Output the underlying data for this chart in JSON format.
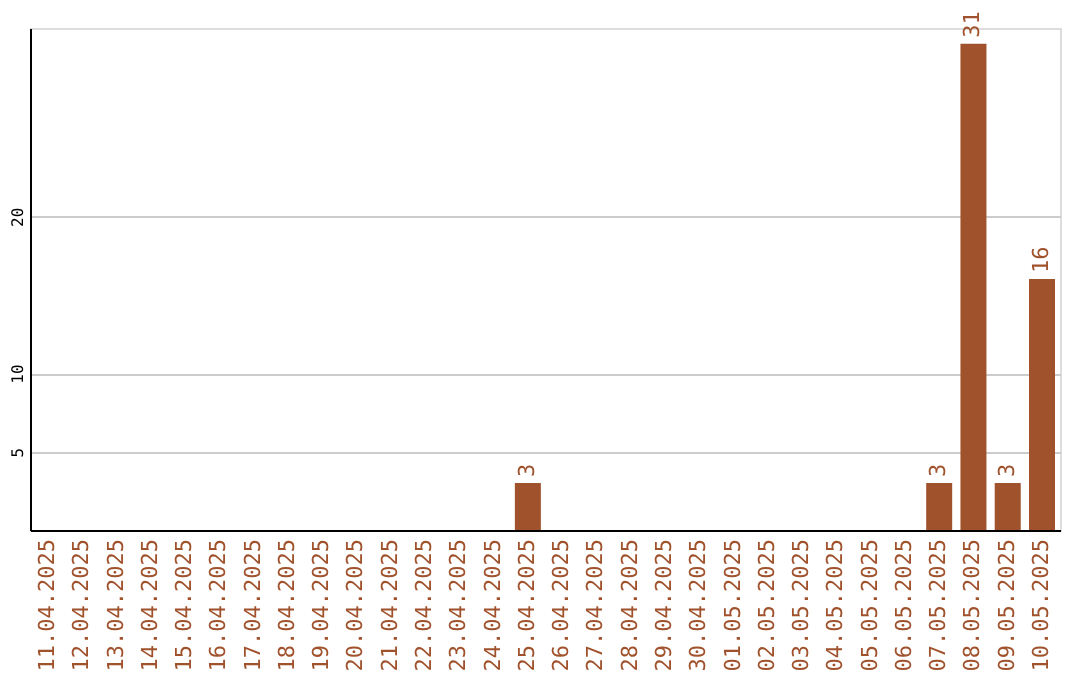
{
  "chart_data": {
    "type": "bar",
    "categories": [
      "11.04.2025",
      "12.04.2025",
      "13.04.2025",
      "14.04.2025",
      "15.04.2025",
      "16.04.2025",
      "17.04.2025",
      "18.04.2025",
      "19.04.2025",
      "20.04.2025",
      "21.04.2025",
      "22.04.2025",
      "23.04.2025",
      "24.04.2025",
      "25.04.2025",
      "26.04.2025",
      "27.04.2025",
      "28.04.2025",
      "29.04.2025",
      "30.04.2025",
      "01.05.2025",
      "02.05.2025",
      "03.05.2025",
      "04.05.2025",
      "05.05.2025",
      "06.05.2025",
      "07.05.2025",
      "08.05.2025",
      "09.05.2025",
      "10.05.2025"
    ],
    "values": [
      0,
      0,
      0,
      0,
      0,
      0,
      0,
      0,
      0,
      0,
      0,
      0,
      0,
      0,
      3,
      0,
      0,
      0,
      0,
      0,
      0,
      0,
      0,
      0,
      0,
      0,
      3,
      31,
      3,
      16
    ],
    "value_labels": [
      null,
      null,
      null,
      null,
      null,
      null,
      null,
      null,
      null,
      null,
      null,
      null,
      null,
      null,
      "3",
      null,
      null,
      null,
      null,
      null,
      null,
      null,
      null,
      null,
      null,
      null,
      "3",
      "31",
      "3",
      "16"
    ],
    "color": "#a0522d",
    "ylim": [
      0,
      32
    ],
    "yticks": [
      5,
      10,
      20
    ],
    "grid": "y"
  }
}
